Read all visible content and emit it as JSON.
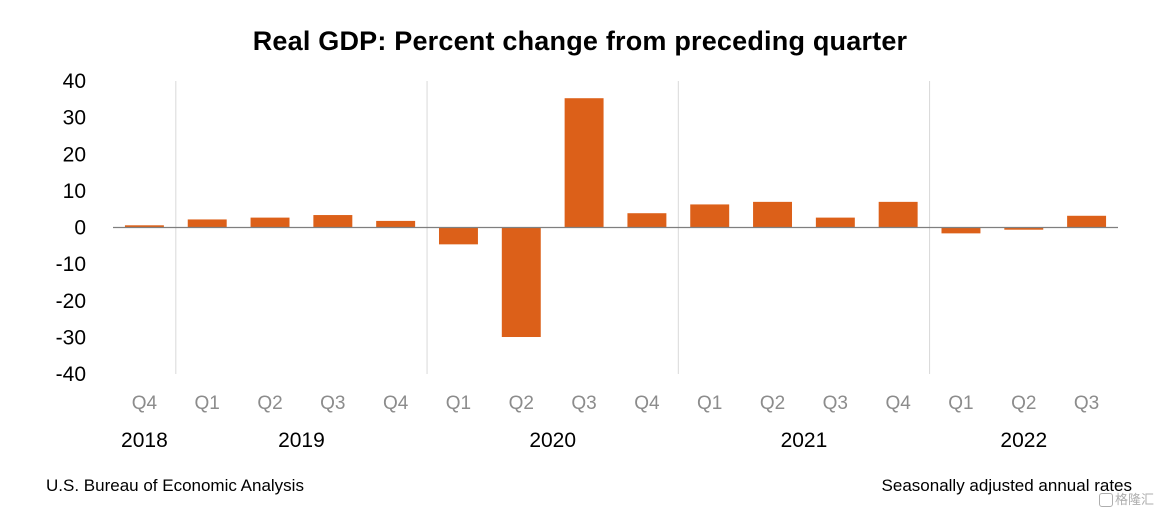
{
  "chart_data": {
    "type": "bar",
    "title": "Real GDP:  Percent change from preceding quarter",
    "ylim": [
      -40,
      40
    ],
    "yticks": [
      40,
      30,
      20,
      10,
      0,
      -10,
      -20,
      -30,
      -40
    ],
    "ytick_labels": [
      "40",
      "30",
      "20",
      "10",
      "0",
      "-10",
      "-20",
      "-30",
      "-40"
    ],
    "categories": [
      "Q4",
      "Q1",
      "Q2",
      "Q3",
      "Q4",
      "Q1",
      "Q2",
      "Q3",
      "Q4",
      "Q1",
      "Q2",
      "Q3",
      "Q4",
      "Q1",
      "Q2",
      "Q3"
    ],
    "values": [
      0.6,
      2.2,
      2.7,
      3.4,
      1.8,
      -4.6,
      -29.9,
      35.3,
      3.9,
      6.3,
      7.0,
      2.7,
      7.0,
      -1.6,
      -0.6,
      3.2
    ],
    "year_groups": [
      {
        "label": "2018",
        "count": 1
      },
      {
        "label": "2019",
        "count": 4
      },
      {
        "label": "2020",
        "count": 4
      },
      {
        "label": "2021",
        "count": 4
      },
      {
        "label": "2022",
        "count": 3
      }
    ],
    "bar_color": "#DC6019",
    "gridlines": false,
    "xlabel": "",
    "ylabel": ""
  },
  "footer": {
    "source": "U.S. Bureau of Economic Analysis",
    "note": "Seasonally adjusted annual rates"
  },
  "watermark": {
    "text": "格隆汇",
    "icon": "brand-logo-icon"
  }
}
